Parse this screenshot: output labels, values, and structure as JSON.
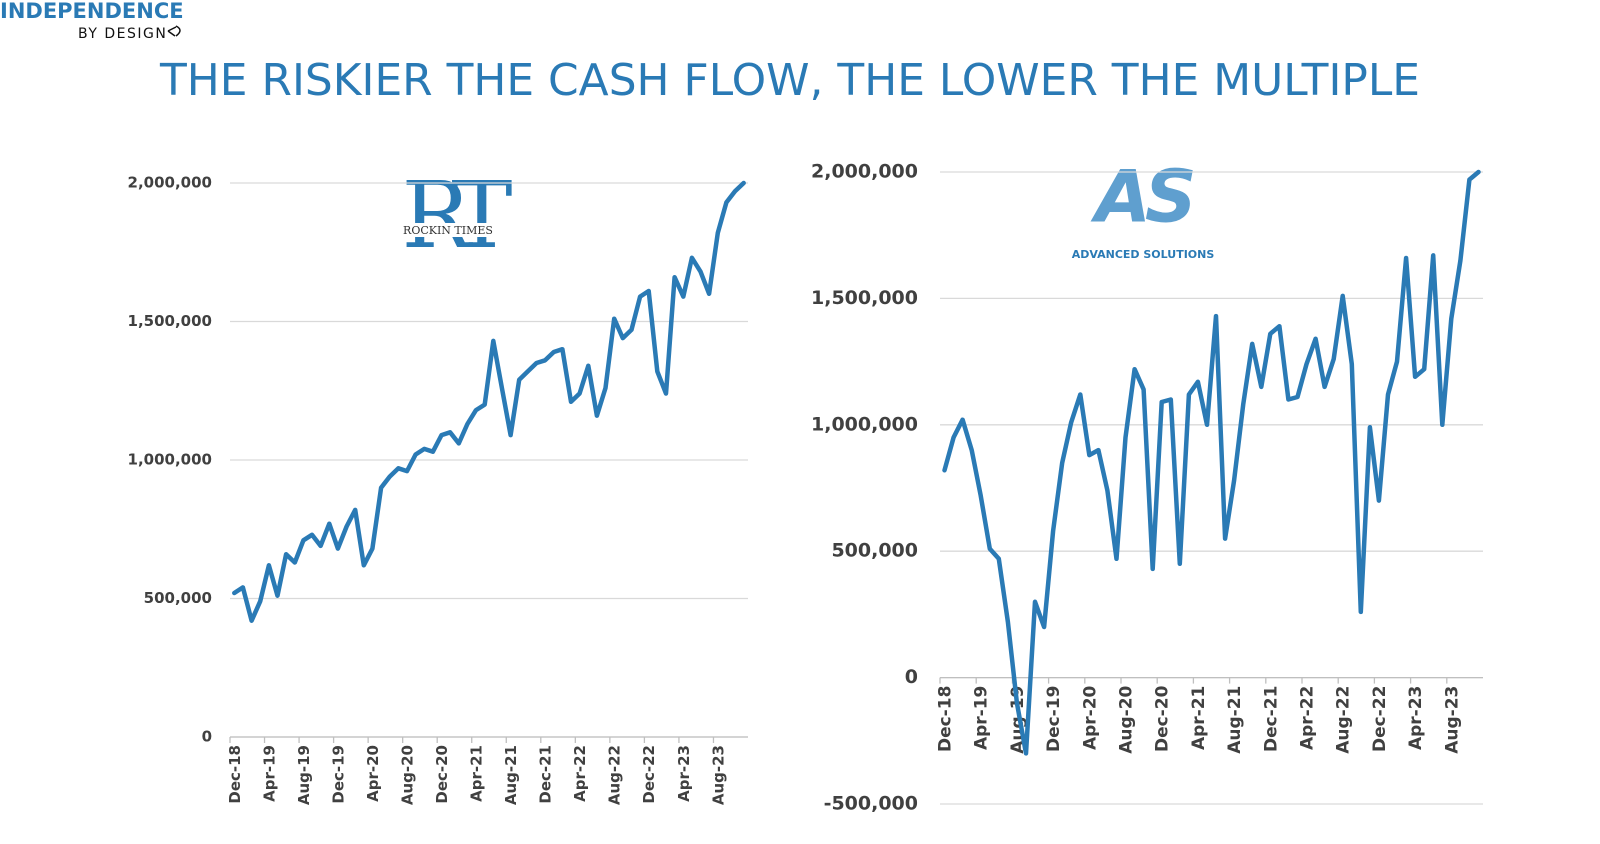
{
  "header": {
    "brand": "INDEPENDENCE",
    "tagline": "BY DESIGN",
    "title": "THE RISKIER THE CASH FLOW, THE LOWER THE MULTIPLE"
  },
  "chart_data": [
    {
      "type": "line",
      "logo": {
        "mark": "RT",
        "name": "ROCKIN TIMES"
      },
      "categories": [
        "Dec-18",
        null,
        null,
        null,
        "Apr-19",
        null,
        null,
        null,
        "Aug-19",
        null,
        null,
        null,
        "Dec-19",
        null,
        null,
        null,
        "Apr-20",
        null,
        null,
        null,
        "Aug-20",
        null,
        null,
        null,
        "Dec-20",
        null,
        null,
        null,
        "Apr-21",
        null,
        null,
        null,
        "Aug-21",
        null,
        null,
        null,
        "Dec-21",
        null,
        null,
        null,
        "Apr-22",
        null,
        null,
        null,
        "Aug-22",
        null,
        null,
        null,
        "Dec-22",
        null,
        null,
        null,
        "Apr-23",
        null,
        null,
        null,
        "Aug-23",
        null,
        null,
        null
      ],
      "series": [
        {
          "color": "#2a7ab5",
          "values": [
            520000,
            540000,
            420000,
            490000,
            620000,
            510000,
            660000,
            630000,
            710000,
            730000,
            690000,
            770000,
            680000,
            760000,
            820000,
            620000,
            680000,
            900000,
            940000,
            970000,
            960000,
            1020000,
            1040000,
            1030000,
            1090000,
            1100000,
            1060000,
            1130000,
            1180000,
            1200000,
            1430000,
            1260000,
            1090000,
            1290000,
            1320000,
            1350000,
            1360000,
            1390000,
            1400000,
            1210000,
            1240000,
            1340000,
            1160000,
            1260000,
            1510000,
            1440000,
            1470000,
            1590000,
            1610000,
            1320000,
            1240000,
            1660000,
            1590000,
            1730000,
            1680000,
            1600000,
            1820000,
            1930000,
            1970000,
            2000000
          ]
        }
      ],
      "ylim": [
        0,
        2000000
      ],
      "yticks": [
        0,
        {
          "value": 500000,
          "label": "500,000"
        },
        {
          "value": 1000000,
          "label": "1,000,000"
        },
        {
          "value": 1500000,
          "label": "1,500,000"
        },
        {
          "value": 2000000,
          "label": "2,000,000"
        }
      ],
      "grid": true
    },
    {
      "type": "line",
      "logo": {
        "mark": "AS",
        "name": "ADVANCED SOLUTIONS"
      },
      "categories": [
        "Dec-18",
        null,
        null,
        null,
        "Apr-19",
        null,
        null,
        null,
        "Aug-19",
        null,
        null,
        null,
        "Dec-19",
        null,
        null,
        null,
        "Apr-20",
        null,
        null,
        null,
        "Aug-20",
        null,
        null,
        null,
        "Dec-20",
        null,
        null,
        null,
        "Apr-21",
        null,
        null,
        null,
        "Aug-21",
        null,
        null,
        null,
        "Dec-21",
        null,
        null,
        null,
        "Apr-22",
        null,
        null,
        null,
        "Aug-22",
        null,
        null,
        null,
        "Dec-22",
        null,
        null,
        null,
        "Apr-23",
        null,
        null,
        null,
        "Aug-23",
        null,
        null,
        null
      ],
      "series": [
        {
          "color": "#2a7ab5",
          "values": [
            820000,
            950000,
            1020000,
            900000,
            720000,
            510000,
            470000,
            220000,
            -100000,
            -300000,
            300000,
            200000,
            580000,
            850000,
            1010000,
            1120000,
            880000,
            900000,
            740000,
            470000,
            950000,
            1220000,
            1140000,
            430000,
            1090000,
            1100000,
            450000,
            1120000,
            1170000,
            1000000,
            1430000,
            550000,
            780000,
            1080000,
            1320000,
            1150000,
            1360000,
            1390000,
            1100000,
            1110000,
            1240000,
            1340000,
            1150000,
            1260000,
            1510000,
            1240000,
            260000,
            990000,
            700000,
            1120000,
            1250000,
            1660000,
            1190000,
            1220000,
            1670000,
            1000000,
            1420000,
            1650000,
            1970000,
            2000000
          ]
        }
      ],
      "ylim": [
        -500000,
        2000000
      ],
      "yticks": [
        {
          "value": -500000,
          "label": "-500,000"
        },
        0,
        {
          "value": 500000,
          "label": "500,000"
        },
        {
          "value": 1000000,
          "label": "1,000,000"
        },
        {
          "value": 1500000,
          "label": "1,500,000"
        },
        {
          "value": 2000000,
          "label": "2,000,000"
        }
      ],
      "grid": true
    }
  ]
}
